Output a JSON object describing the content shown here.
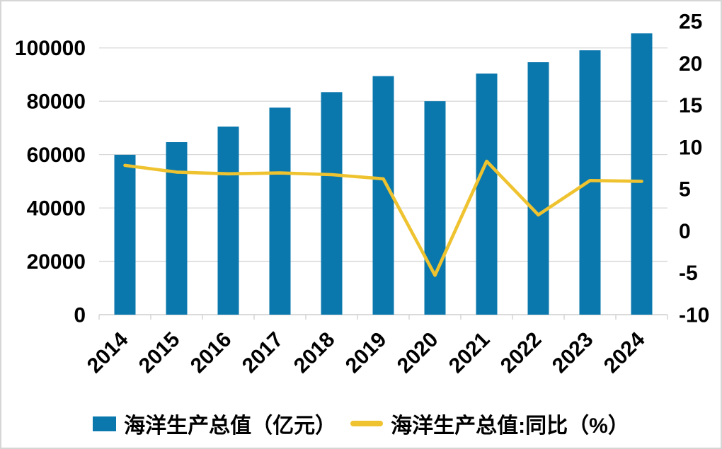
{
  "chart_data": {
    "type": "bar",
    "combo": "bar+line dual-axis",
    "title": "",
    "xlabel": "",
    "ylabel": "",
    "categories": [
      "2014",
      "2015",
      "2016",
      "2017",
      "2018",
      "2019",
      "2020",
      "2021",
      "2022",
      "2023",
      "2024"
    ],
    "series": [
      {
        "name": "海洋生产总值（亿元）",
        "type": "bar",
        "axis": "left",
        "values": [
          59936,
          64669,
          70507,
          77611,
          83415,
          89415,
          80010,
          90385,
          94628,
          99097,
          105438
        ]
      },
      {
        "name": "海洋生产总值:同比（%）",
        "type": "line",
        "axis": "right",
        "values": [
          7.8,
          7.0,
          6.8,
          6.9,
          6.7,
          6.2,
          -5.3,
          8.3,
          1.9,
          6.0,
          5.9
        ]
      }
    ],
    "left_axis": {
      "min": 0,
      "max": 110000,
      "tick_step": 20000,
      "tick_labels": [
        "0",
        "20000",
        "40000",
        "60000",
        "80000",
        "100000"
      ]
    },
    "right_axis": {
      "min": -10,
      "max": 25,
      "tick_step": 5,
      "tick_labels": [
        "-10",
        "-5",
        "0",
        "5",
        "10",
        "15",
        "20",
        "25"
      ]
    },
    "grid": "horizontal",
    "legend_position": "bottom"
  },
  "legend": {
    "bar_label": "海洋生产总值（亿元）",
    "line_label": "海洋生产总值:同比（%）"
  },
  "colors": {
    "bar": "#0b78ad",
    "line": "#efc32f",
    "grid": "#d9d9d9",
    "axis": "#d0d0d0",
    "text": "#000000",
    "border": "#d6d6d6",
    "background": "#ffffff"
  }
}
